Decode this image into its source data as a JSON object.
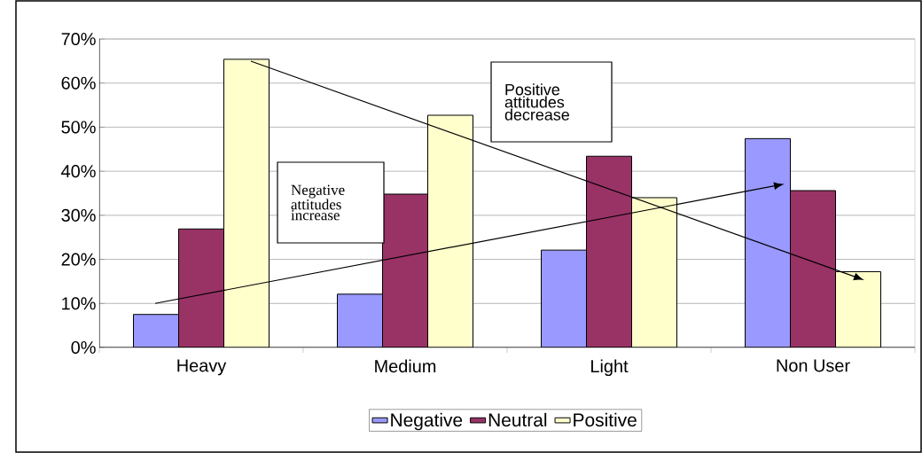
{
  "chart_data": {
    "type": "bar",
    "categories": [
      "Heavy",
      "Medium",
      "Light",
      "Non User"
    ],
    "series": [
      {
        "name": "Negative",
        "color": "#9999ff",
        "values": [
          7.5,
          12.1,
          22.1,
          47.4
        ]
      },
      {
        "name": "Neutral",
        "color": "#993366",
        "values": [
          26.9,
          34.8,
          43.4,
          35.6
        ]
      },
      {
        "name": "Positive",
        "color": "#ffffcc",
        "values": [
          65.4,
          52.7,
          34.0,
          17.2
        ]
      }
    ],
    "ylim": [
      0,
      70
    ],
    "yticks": [
      {
        "value": 0,
        "label": "0%"
      },
      {
        "value": 10,
        "label": "10%"
      },
      {
        "value": 20,
        "label": "20%"
      },
      {
        "value": 30,
        "label": "30%"
      },
      {
        "value": 40,
        "label": "40%"
      },
      {
        "value": 50,
        "label": "50%"
      },
      {
        "value": 60,
        "label": "60%"
      },
      {
        "value": 70,
        "label": "70%"
      }
    ],
    "grid": "y",
    "legend": "bottom",
    "annotations": [
      "Negative attitudes increase",
      "Positive attitudes decrease"
    ]
  }
}
